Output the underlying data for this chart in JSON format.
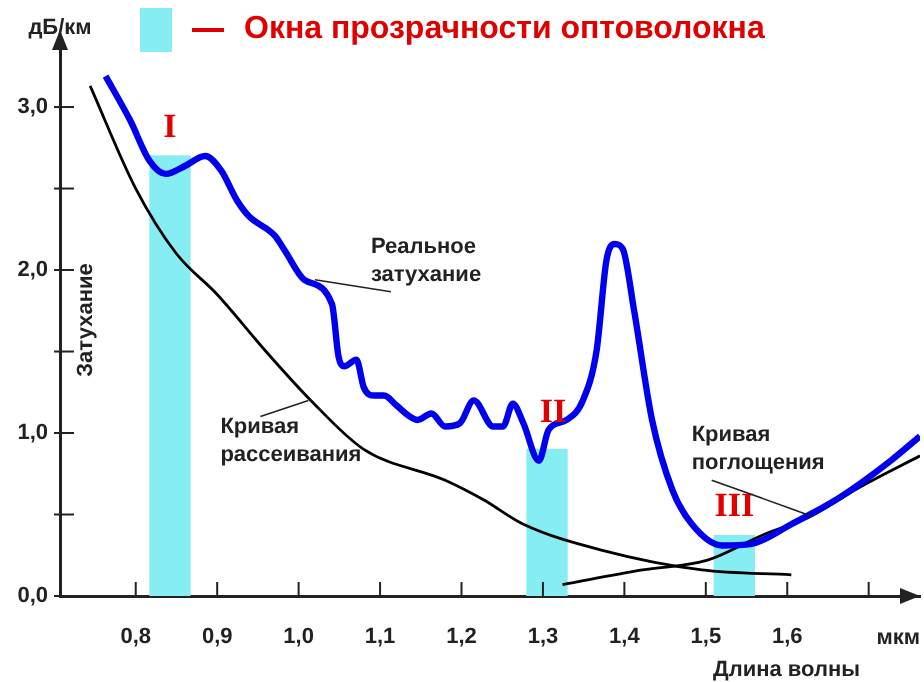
{
  "chart_data": {
    "type": "line",
    "xlabel": "Длина волны",
    "ylabel": "Затухание",
    "xlim": [
      0.707,
      1.763
    ],
    "ylim": [
      0,
      3.35
    ],
    "xticks": [
      {
        "value": 0.8,
        "label": "0,8"
      },
      {
        "value": 0.9,
        "label": "0,9"
      },
      {
        "value": 1.0,
        "label": "1,0"
      },
      {
        "value": 1.1,
        "label": "1,1"
      },
      {
        "value": 1.2,
        "label": "1,2"
      },
      {
        "value": 1.3,
        "label": "1,3"
      },
      {
        "value": 1.4,
        "label": "1,4"
      },
      {
        "value": 1.5,
        "label": "1,5"
      },
      {
        "value": 1.6,
        "label": "1,6"
      },
      {
        "value": 1.7,
        "label": null
      }
    ],
    "yticks": [
      {
        "value": 0,
        "label": "0,0"
      },
      {
        "value": 0.5,
        "label": null
      },
      {
        "value": 1,
        "label": "1,0"
      },
      {
        "value": 1.5,
        "label": null
      },
      {
        "value": 2,
        "label": "2,0"
      },
      {
        "value": 2.5,
        "label": null
      },
      {
        "value": 3,
        "label": "3,0"
      }
    ],
    "grid": false,
    "legend": "top",
    "marker": "none",
    "line_style": "solid",
    "series": [
      {
        "type": "bar",
        "name": "Окна прозрачности оптоволокна",
        "color": "#86eef2",
        "x": [
          0.842,
          1.305,
          1.535
        ],
        "values": [
          2.7,
          0.9,
          0.37
        ]
      },
      {
        "color": "#0000ee",
        "x": [
          0.763,
          0.793,
          0.817,
          0.837,
          0.861,
          0.885,
          0.905,
          0.924,
          0.939,
          0.971,
          0.983,
          1.007,
          1.041,
          1.049,
          1.056,
          1.071,
          1.08,
          1.093,
          1.105,
          1.12,
          1.137,
          1.146,
          1.163,
          1.18,
          1.198,
          1.215,
          1.239,
          1.251,
          1.263,
          1.276,
          1.295,
          1.307,
          1.329,
          1.349,
          1.366,
          1.378,
          1.388,
          1.398,
          1.412,
          1.434,
          1.459,
          1.483,
          1.52,
          1.556,
          1.605,
          1.666,
          1.727,
          1.763
        ],
        "values": [
          3.19,
          2.92,
          2.67,
          2.59,
          2.64,
          2.7,
          2.61,
          2.43,
          2.33,
          2.21,
          2.12,
          1.94,
          1.79,
          1.47,
          1.41,
          1.45,
          1.28,
          1.23,
          1.23,
          1.17,
          1.1,
          1.08,
          1.12,
          1.04,
          1.06,
          1.2,
          1.04,
          1.04,
          1.18,
          1.06,
          0.83,
          1.02,
          1.08,
          1.2,
          1.51,
          2.06,
          2.16,
          2.13,
          1.75,
          1.08,
          0.65,
          0.44,
          0.31,
          0.32,
          0.44,
          0.61,
          0.83,
          0.98
        ]
      },
      {
        "color": "#000000",
        "x": [
          0.744,
          0.8,
          0.85,
          0.9,
          0.96,
          1.015,
          1.08,
          1.18,
          1.227,
          1.276,
          1.373,
          1.495,
          1.605
        ],
        "values": [
          3.13,
          2.5,
          2.1,
          1.85,
          1.5,
          1.2,
          0.9,
          0.71,
          0.59,
          0.44,
          0.28,
          0.16,
          0.13
        ]
      },
      {
        "color": "#000000",
        "x": [
          1.324,
          1.422,
          1.502,
          1.568,
          1.629,
          1.69,
          1.763
        ],
        "values": [
          0.07,
          0.16,
          0.22,
          0.37,
          0.49,
          0.67,
          0.86
        ]
      }
    ],
    "annotations": [
      "дБ/км",
      "мкм",
      "I",
      "II",
      "III",
      {
        "text": "Реальное затухание",
        "x": 1.02,
        "y": 1.94
      },
      {
        "text": "Кривая рассеивания",
        "x": 1.012,
        "y": 1.2
      },
      {
        "text": "Кривая поглощения",
        "x": 1.63,
        "y": 0.49
      }
    ]
  }
}
